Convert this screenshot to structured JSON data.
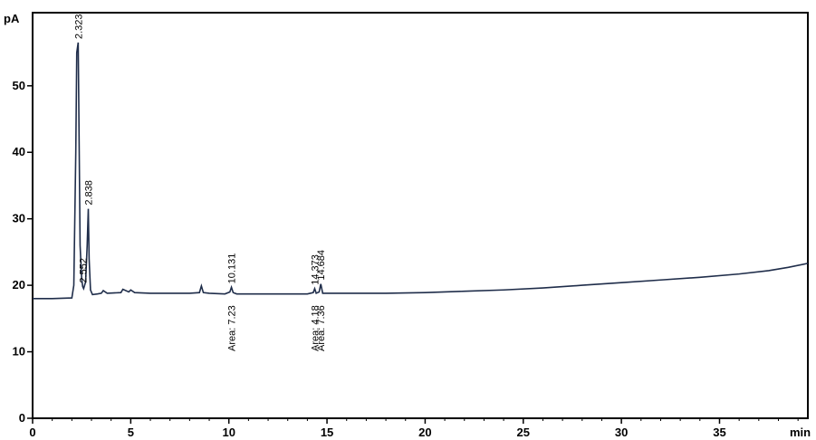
{
  "chart_data": {
    "type": "line",
    "title": "",
    "xlabel": "min",
    "ylabel": "pA",
    "xlim": [
      0,
      39.5
    ],
    "ylim": [
      0,
      61
    ],
    "x_ticks": [
      0,
      5,
      10,
      15,
      20,
      25,
      30,
      35
    ],
    "y_ticks": [
      0,
      10,
      20,
      30,
      40,
      50
    ],
    "grid": false,
    "series": [
      {
        "values_x": [
          0,
          1.0,
          2.0,
          2.1,
          2.2,
          2.25,
          2.323,
          2.36,
          2.42,
          2.5,
          2.552,
          2.6,
          2.7,
          2.78,
          2.838,
          2.88,
          2.95,
          3.05,
          3.3,
          3.5,
          3.6,
          3.8,
          4.5,
          4.6,
          4.9,
          5.0,
          5.2,
          6.0,
          7.0,
          8.0,
          8.5,
          8.6,
          8.7,
          9.0,
          9.8,
          10.05,
          10.131,
          10.22,
          10.4,
          11.0,
          12.0,
          13.0,
          14.0,
          14.3,
          14.373,
          14.45,
          14.6,
          14.684,
          14.78,
          15.0,
          16.0,
          18.0,
          20.0,
          22.0,
          24.0,
          26.0,
          28.0,
          30.0,
          32.0,
          34.0,
          36.0,
          37.5,
          38.5,
          39.5
        ],
        "values_y": [
          18.0,
          18.0,
          18.1,
          20.0,
          40.0,
          55.0,
          56.5,
          45.0,
          26.0,
          21.0,
          19.8,
          19.5,
          20.5,
          26.0,
          31.5,
          24.0,
          19.3,
          18.6,
          18.7,
          18.8,
          19.2,
          18.8,
          18.9,
          19.4,
          19.0,
          19.3,
          18.9,
          18.8,
          18.8,
          18.8,
          18.9,
          19.9,
          18.9,
          18.8,
          18.7,
          19.0,
          19.7,
          18.9,
          18.7,
          18.7,
          18.7,
          18.7,
          18.7,
          18.9,
          19.5,
          18.8,
          19.0,
          20.2,
          18.8,
          18.8,
          18.8,
          18.8,
          18.9,
          19.1,
          19.3,
          19.6,
          20.0,
          20.4,
          20.8,
          21.2,
          21.7,
          22.2,
          22.7,
          23.3
        ]
      }
    ],
    "peaks": [
      {
        "rt": "2.323",
        "x": 2.323,
        "y": 56.5
      },
      {
        "rt": "2.552",
        "x": 2.552,
        "y": 19.8
      },
      {
        "rt": "2.838",
        "x": 2.838,
        "y": 31.5
      },
      {
        "rt": "10.131",
        "x": 10.131,
        "y": 19.7
      },
      {
        "rt": "14.373",
        "x": 14.373,
        "y": 19.5
      },
      {
        "rt": "14.684",
        "x": 14.684,
        "y": 20.2
      }
    ],
    "area_annotations": [
      {
        "text": "Area: 7.23",
        "x": 10.131
      },
      {
        "text": "Area: 4.18",
        "x": 14.373
      },
      {
        "text": "Area: 7.36",
        "x": 14.684
      }
    ]
  }
}
